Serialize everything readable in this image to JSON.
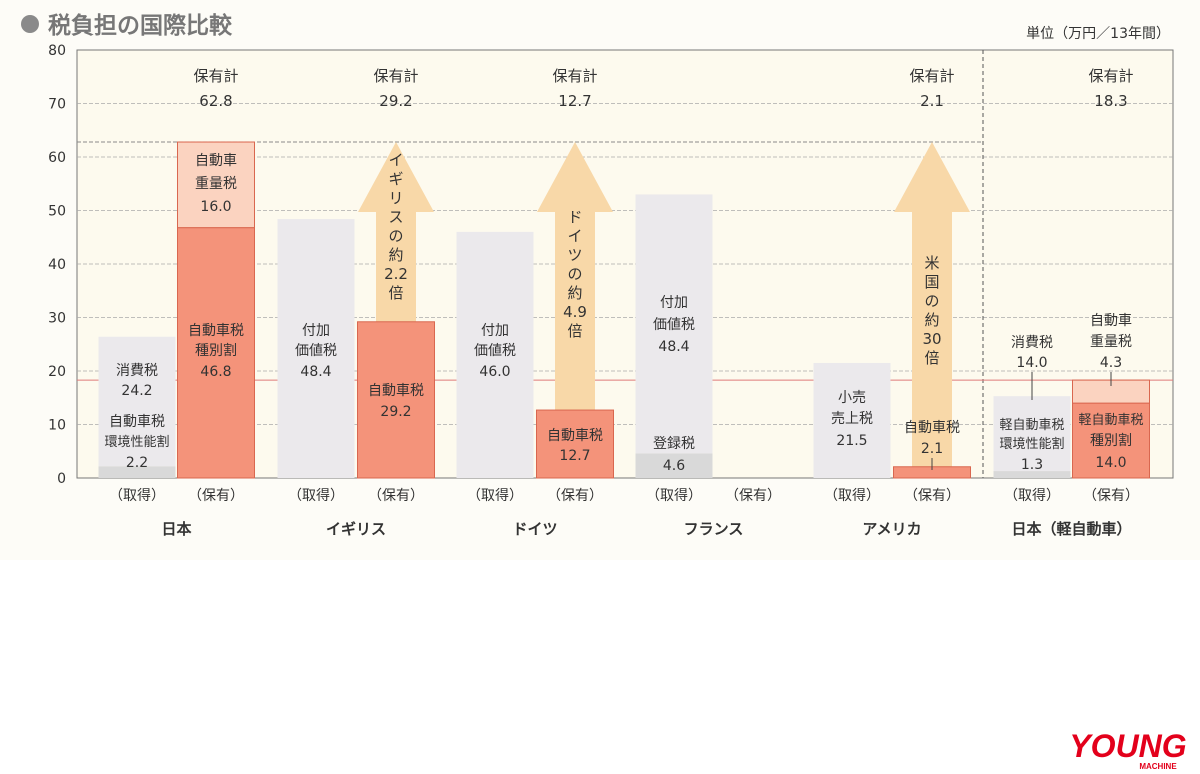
{
  "title": "税負担の国際比較",
  "unit": "単位（万円／13年間）",
  "logo": {
    "main": "YOUNG",
    "sub": "MACHINE"
  },
  "chart_data": {
    "type": "bar",
    "stacked": true,
    "title": "税負担の国際比較",
    "ylabel": "",
    "unit": "単位（万円／13年間）",
    "ylim": [
      0,
      80
    ],
    "yticks": [
      0,
      10,
      20,
      30,
      40,
      50,
      60,
      70,
      80
    ],
    "grid": true,
    "reference_lines": [
      {
        "value": 62.8,
        "style": "dashed",
        "color": "#8a8a8a"
      },
      {
        "value": 18.3,
        "style": "solid",
        "color": "#e07a7a"
      }
    ],
    "bar_kinds": {
      "acquisition": "（取得）",
      "ownership": "（保有）"
    },
    "total_label": "保有計",
    "colors": {
      "background": "#fdfaee",
      "acquisition_main": "#ebe9ec",
      "acquisition_base": "#d9d9d9",
      "ownership_main": "#f4937a",
      "ownership_top": "#fbd3c0",
      "ownership_stroke": "#d9674f",
      "arrow": "#f8d8a8"
    },
    "groups": [
      {
        "country": "日本",
        "acquisition": {
          "segments": [
            {
              "name": "自動車税環境性能割",
              "lines": [
                "自動車税",
                "環境性能割",
                "2.2"
              ],
              "value": 2.2
            },
            {
              "name": "消費税",
              "lines": [
                "消費税",
                "24.2"
              ],
              "value": 24.2
            }
          ]
        },
        "ownership": {
          "total": "62.8",
          "segments": [
            {
              "name": "自動車税種別割",
              "lines": [
                "自動車税",
                "種別割",
                "46.8"
              ],
              "value": 46.8
            },
            {
              "name": "自動車重量税",
              "lines": [
                "自動車",
                "重量税",
                "16.0"
              ],
              "value": 16.0
            }
          ]
        }
      },
      {
        "country": "イギリス",
        "acquisition": {
          "segments": [
            {
              "name": "付加価値税",
              "lines": [
                "付加",
                "価値税",
                "48.4"
              ],
              "value": 48.4
            }
          ]
        },
        "ownership": {
          "total": "29.2",
          "segments": [
            {
              "name": "自動車税",
              "lines": [
                "自動車税",
                "29.2"
              ],
              "value": 29.2
            }
          ]
        },
        "arrow": {
          "chars": [
            "イ",
            "ギ",
            "リ",
            "ス",
            "の",
            "約",
            "2.2",
            "倍"
          ]
        }
      },
      {
        "country": "ドイツ",
        "acquisition": {
          "segments": [
            {
              "name": "付加価値税",
              "lines": [
                "付加",
                "価値税",
                "46.0"
              ],
              "value": 46.0
            }
          ]
        },
        "ownership": {
          "total": "12.7",
          "segments": [
            {
              "name": "自動車税",
              "lines": [
                "自動車税",
                "12.7"
              ],
              "value": 12.7
            }
          ]
        },
        "arrow": {
          "chars": [
            "ド",
            "イ",
            "ツ",
            "の",
            "約",
            "4.9",
            "倍"
          ]
        }
      },
      {
        "country": "フランス",
        "acquisition": {
          "segments": [
            {
              "name": "登録税",
              "lines": [
                "登録税",
                "4.6"
              ],
              "value": 4.6
            },
            {
              "name": "付加価値税",
              "lines": [
                "付加",
                "価値税",
                "48.4"
              ],
              "value": 48.4
            }
          ]
        },
        "ownership": {
          "total": "",
          "segments": []
        }
      },
      {
        "country": "アメリカ",
        "acquisition": {
          "segments": [
            {
              "name": "小売売上税",
              "lines": [
                "小売",
                "売上税",
                "21.5"
              ],
              "value": 21.5
            }
          ]
        },
        "ownership": {
          "total": "2.1",
          "segments": [
            {
              "name": "自動車税",
              "lines": [
                "自動車税",
                "2.1"
              ],
              "value": 2.1
            }
          ]
        },
        "arrow": {
          "chars": [
            "米",
            "国",
            "の",
            "約",
            "30",
            "倍"
          ]
        }
      },
      {
        "country": "日本（軽自動車）",
        "acquisition": {
          "segments": [
            {
              "name": "軽自動車税環境性能割",
              "lines": [
                "軽自動車税",
                "環境性能割",
                "1.3"
              ],
              "value": 1.3
            },
            {
              "name": "消費税",
              "lines": [
                "消費税",
                "14.0"
              ],
              "value": 14.0
            }
          ]
        },
        "ownership": {
          "total": "18.3",
          "segments": [
            {
              "name": "軽自動車税種別割",
              "lines": [
                "軽自動車税",
                "種別割",
                "14.0"
              ],
              "value": 14.0
            },
            {
              "name": "自動車重量税",
              "lines": [
                "自動車",
                "重量税",
                "4.3"
              ],
              "value": 4.3
            }
          ]
        }
      }
    ]
  }
}
